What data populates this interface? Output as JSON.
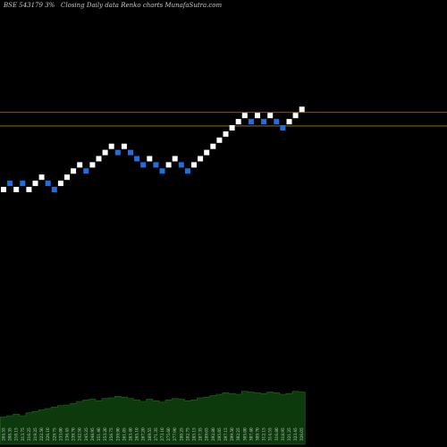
{
  "header": {
    "symbol": "BSE 543179 3%",
    "series_label": "Closing Daily data",
    "chart_kind": "Renko",
    "site": "charts MunafaSutra.com"
  },
  "colors": {
    "background": "#000000",
    "up_brick": "#ffffff",
    "down_brick": "#1e6fe0",
    "level_line": "#b07a1a",
    "volume_fill": "#0d3a0d",
    "volume_stroke": "#1f6f1f",
    "volume_label": "#cfcfcf"
  },
  "chart_data": {
    "type": "renko",
    "y_levels": [
      1,
      2,
      1,
      2,
      1,
      2,
      3,
      2,
      1,
      2,
      3,
      4,
      5,
      4,
      5,
      6,
      7,
      8,
      7,
      8,
      7,
      6,
      5,
      6,
      5,
      4,
      5,
      6,
      5,
      4,
      5,
      6,
      7,
      8,
      9,
      10,
      11,
      12,
      13,
      12,
      13,
      12,
      13,
      12,
      11,
      12,
      13,
      14
    ],
    "directions": [
      "up",
      "down",
      "up",
      "down",
      "up",
      "up",
      "up",
      "down",
      "down",
      "up",
      "up",
      "up",
      "up",
      "down",
      "up",
      "up",
      "up",
      "up",
      "down",
      "up",
      "down",
      "down",
      "down",
      "up",
      "down",
      "down",
      "up",
      "up",
      "down",
      "down",
      "up",
      "up",
      "up",
      "up",
      "up",
      "up",
      "up",
      "up",
      "up",
      "down",
      "up",
      "down",
      "up",
      "down",
      "down",
      "up",
      "up",
      "up"
    ],
    "reference_levels": [
      13.5,
      11.3
    ],
    "volume": {
      "values": [
        38,
        40,
        42,
        40,
        44,
        46,
        48,
        50,
        52,
        54,
        55,
        57,
        60,
        62,
        63,
        61,
        64,
        65,
        67,
        66,
        64,
        62,
        60,
        63,
        61,
        59,
        62,
        64,
        63,
        61,
        62,
        65,
        66,
        68,
        70,
        72,
        71,
        70,
        74,
        73,
        72,
        71,
        73,
        72,
        70,
        71,
        74,
        73
      ],
      "labels": [
        "204.55",
        "208.35",
        "210.15",
        "213.75",
        "216.25",
        "219.25",
        "222.50",
        "226.10",
        "229.75",
        "233.00",
        "236.45",
        "239.70",
        "242.50",
        "245.25",
        "248.95",
        "251.40",
        "253.20",
        "256.75",
        "259.90",
        "261.05",
        "263.40",
        "265.10",
        "267.20",
        "269.55",
        "271.35",
        "273.10",
        "275.60",
        "277.90",
        "280.25",
        "282.75",
        "285.15",
        "287.35",
        "289.65",
        "292.80",
        "295.05",
        "297.15",
        "299.50",
        "302.25",
        "305.00",
        "307.40",
        "309.70",
        "312.15",
        "314.55",
        "316.80",
        "318.95",
        "321.25",
        "323.45",
        "326.05"
      ]
    }
  }
}
